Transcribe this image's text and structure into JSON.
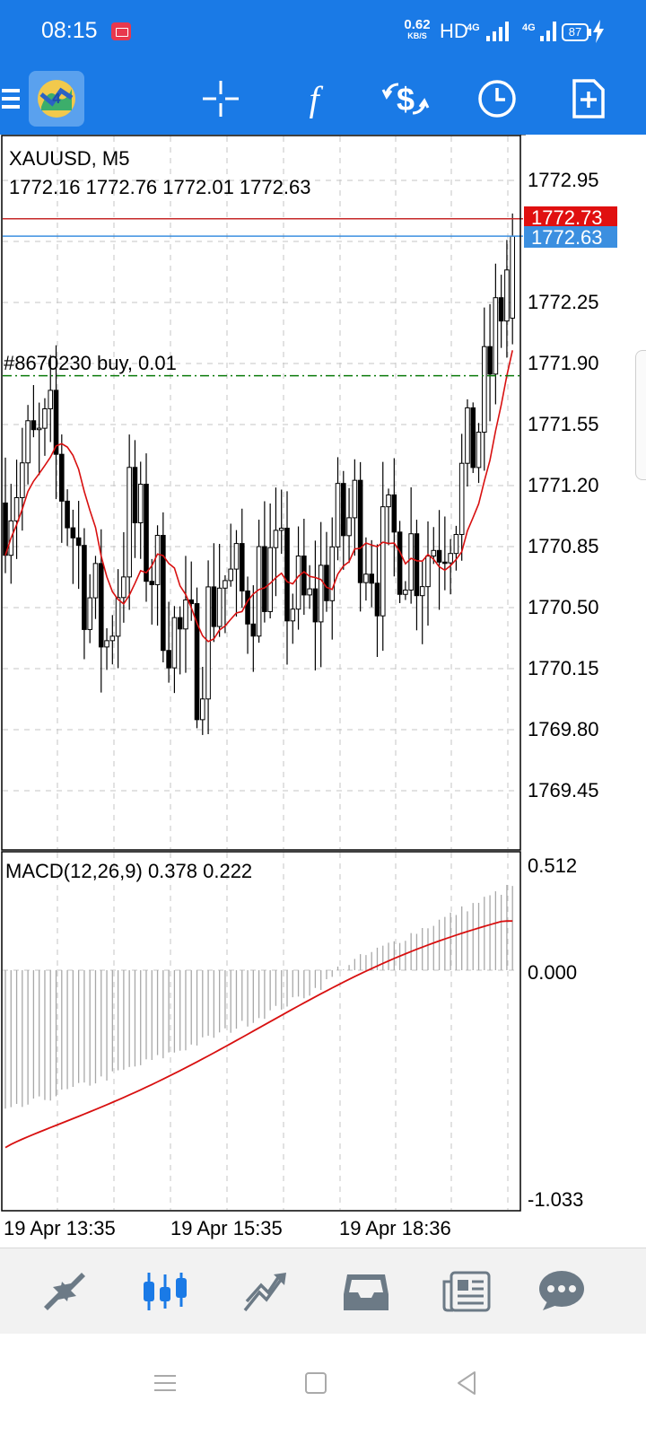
{
  "status": {
    "time": "08:15",
    "speed_value": "0.62",
    "speed_unit": "KB/S",
    "hd_label": "HD",
    "net1": "4G",
    "net2": "4G",
    "battery": "87"
  },
  "icons": {
    "menu": "menu-icon",
    "logo": "metatrader-logo-icon",
    "crosshair": "crosshair-icon",
    "indicators": "function-icon",
    "trade": "dollar-exchange-icon",
    "period": "clock-icon",
    "new_order": "new-document-icon",
    "nav_quotes": "quotes-icon",
    "nav_chart": "chart-icon",
    "nav_trade": "trade-icon",
    "nav_history": "history-icon",
    "nav_news": "news-icon",
    "nav_messages": "chat-icon"
  },
  "colors": {
    "brand": "#1a7ae6",
    "bid_line": "#c62828",
    "ask_line": "#3b8fe0",
    "ma_line": "#d81010",
    "order_line": "#0a7a0a"
  },
  "chart": {
    "symbol_label": "XAUUSD, M5",
    "ohlc_label": "1772.16 1772.76 1772.01 1772.63",
    "bid_label": "1772.73",
    "ask_label": "1772.63",
    "order_label": "#8670230 buy, 0.01",
    "macd_label": "MACD(12,26,9) 0.378 0.222",
    "price_ticks": [
      "1772.95",
      "1772.25",
      "1771.90",
      "1771.55",
      "1771.20",
      "1770.85",
      "1770.50",
      "1770.15",
      "1769.80",
      "1769.45"
    ],
    "macd_ticks": [
      "0.512",
      "0.000",
      "-1.033"
    ],
    "time_labels": [
      "19 Apr 13:35",
      "19 Apr 15:35",
      "19 Apr 18:36"
    ]
  },
  "chart_data": {
    "type": "candlestick",
    "symbol": "XAUUSD",
    "timeframe": "M5",
    "last_ohlc": {
      "open": 1772.16,
      "high": 1772.76,
      "low": 1772.01,
      "close": 1772.63
    },
    "bid": 1772.73,
    "ask": 1772.63,
    "order": {
      "ticket": "#8670230",
      "side": "buy",
      "volume": 0.01,
      "price": 1771.83
    },
    "ylim": [
      1769.15,
      1773.15
    ],
    "macd": {
      "fast": 12,
      "slow": 26,
      "signal": 9,
      "main": 0.378,
      "signal_value": 0.222,
      "ylim": [
        -1.033,
        0.512
      ]
    }
  }
}
